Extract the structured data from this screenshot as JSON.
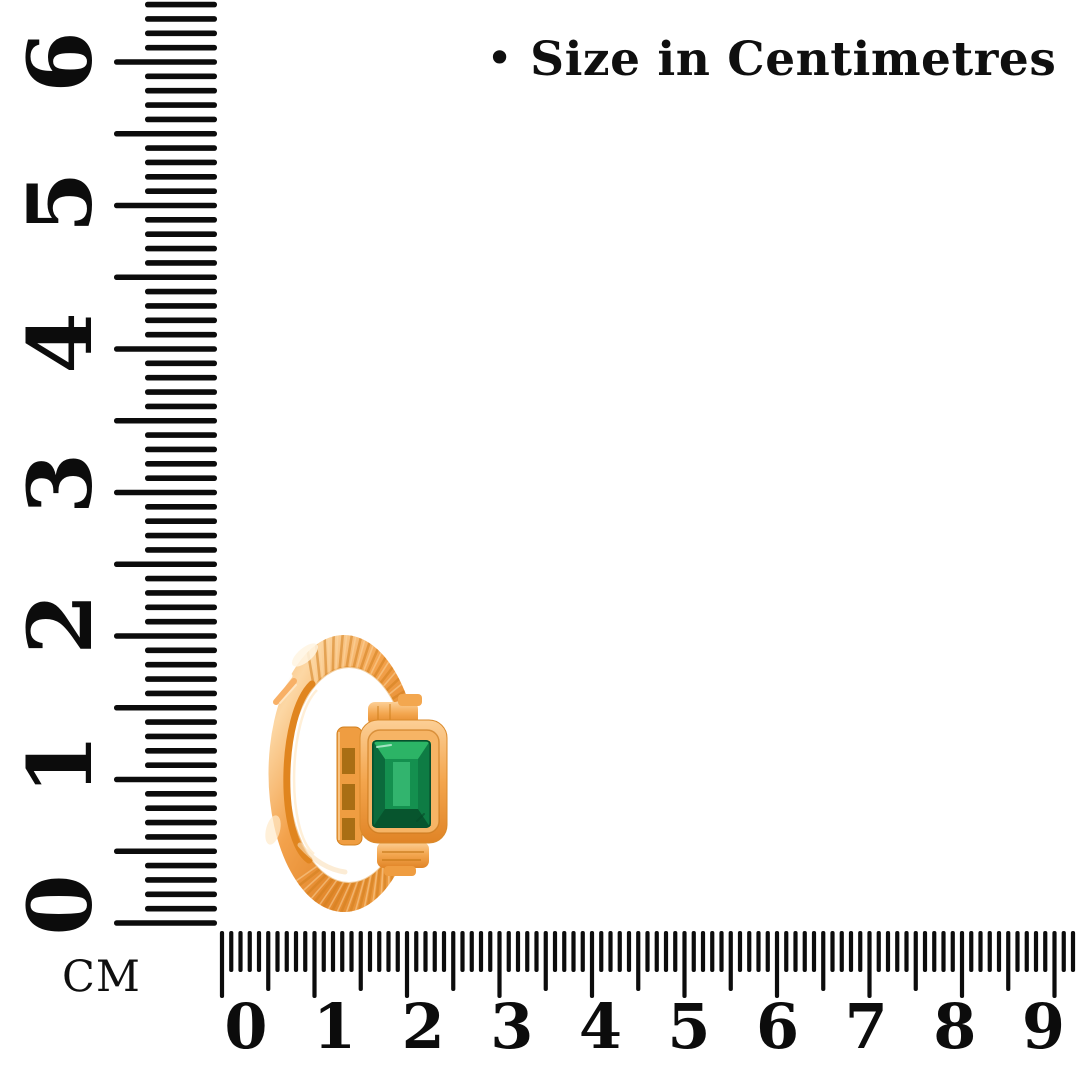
{
  "page": {
    "background_color": "#ffffff",
    "ink_color": "#0c0c0c"
  },
  "caption": {
    "bullet": "•",
    "text": "Size in Centimetres"
  },
  "unit_label": "CM",
  "vertical_ruler": {
    "unit": "centimetres",
    "direction": "bottom-to-top",
    "labels": [
      "0",
      "1",
      "2",
      "3",
      "4",
      "5",
      "6"
    ],
    "minor_ticks_per_unit": 10,
    "long_tick_every": 5
  },
  "horizontal_ruler": {
    "unit": "centimetres",
    "direction": "left-to-right",
    "labels": [
      "0",
      "1",
      "2",
      "3",
      "4",
      "5",
      "6",
      "7",
      "8",
      "9"
    ],
    "minor_ticks_per_unit": 10,
    "medium_tick_every": 5
  },
  "product": {
    "description": "adjustable rose-gold ring with rope-textured band and bezel-set emerald-cut green stone",
    "band_color": "#f2a04b",
    "band_highlight": "#fcd7a4",
    "band_shadow": "#d2801f",
    "stone_color": "#12914e",
    "stone_dark": "#0a6036",
    "stone_light": "#3cc47d"
  }
}
